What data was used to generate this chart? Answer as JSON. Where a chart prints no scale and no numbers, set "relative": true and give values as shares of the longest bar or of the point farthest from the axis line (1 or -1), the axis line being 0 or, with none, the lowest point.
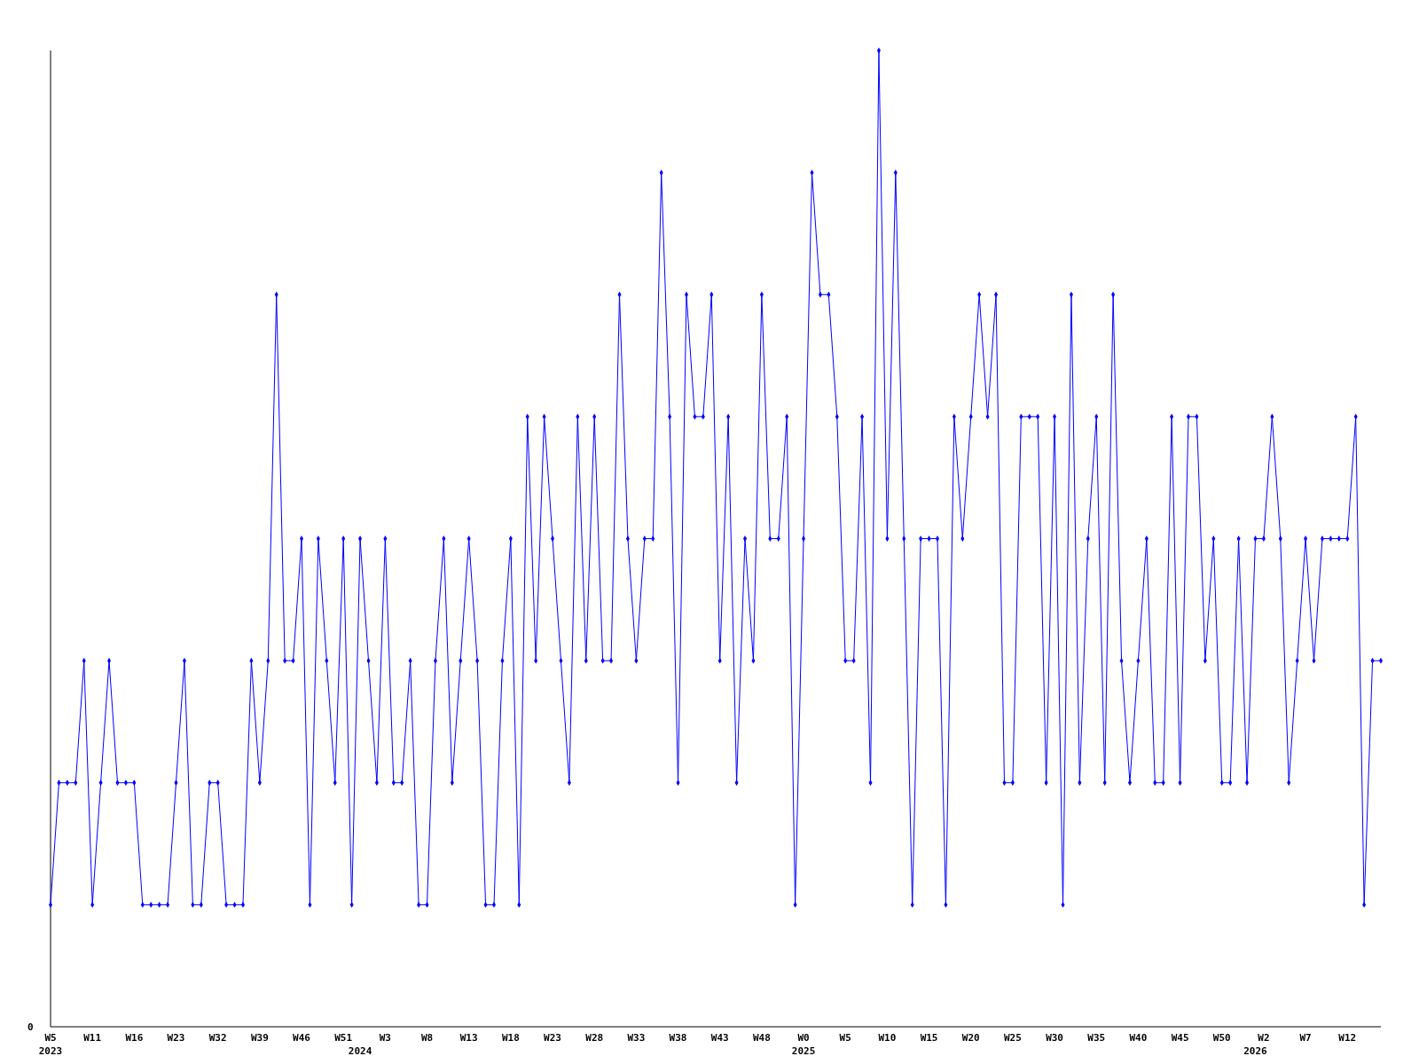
{
  "chart_data": {
    "type": "line",
    "relative": true,
    "marker": "diamond",
    "annotations": [
      "0"
    ],
    "categories": [
      "W5\n2023",
      null,
      null,
      null,
      null,
      "W11",
      null,
      null,
      null,
      null,
      "W16",
      null,
      null,
      null,
      null,
      "W23",
      null,
      null,
      null,
      null,
      "W32",
      null,
      null,
      null,
      null,
      "W39",
      null,
      null,
      null,
      null,
      "W46",
      null,
      null,
      null,
      null,
      "W51",
      null,
      "\n2024",
      null,
      null,
      "W3",
      null,
      null,
      null,
      null,
      "W8",
      null,
      null,
      null,
      null,
      "W13",
      null,
      null,
      null,
      null,
      "W18",
      null,
      null,
      null,
      null,
      "W23",
      null,
      null,
      null,
      null,
      "W28",
      null,
      null,
      null,
      null,
      "W33",
      null,
      null,
      null,
      null,
      "W38",
      null,
      null,
      null,
      null,
      "W43",
      null,
      null,
      null,
      null,
      "W48",
      null,
      null,
      null,
      null,
      "W0\n2025",
      null,
      null,
      null,
      null,
      "W5",
      null,
      null,
      null,
      null,
      "W10",
      null,
      null,
      null,
      null,
      "W15",
      null,
      null,
      null,
      null,
      "W20",
      null,
      null,
      null,
      null,
      "W25",
      null,
      null,
      null,
      null,
      "W30",
      null,
      null,
      null,
      null,
      "W35",
      null,
      null,
      null,
      null,
      "W40",
      null,
      null,
      null,
      null,
      "W45",
      null,
      null,
      null,
      null,
      "W50",
      null,
      null,
      null,
      "\n2026",
      "W2",
      null,
      null,
      null,
      null,
      "W7",
      null,
      null,
      null,
      null,
      "W12",
      null,
      null,
      null,
      null
    ],
    "series": [
      {
        "color": "#0000ff",
        "values": [
          0.125,
          0.25,
          0.25,
          0.25,
          0.375,
          0.125,
          0.25,
          0.375,
          0.25,
          0.25,
          0.25,
          0.125,
          0.125,
          0.125,
          0.125,
          0.25,
          0.375,
          0.125,
          0.125,
          0.25,
          0.25,
          0.125,
          0.125,
          0.125,
          0.375,
          0.25,
          0.375,
          0.75,
          0.375,
          0.375,
          0.5,
          0.125,
          0.5,
          0.375,
          0.25,
          0.5,
          0.125,
          0.5,
          0.375,
          0.25,
          0.5,
          0.25,
          0.25,
          0.375,
          0.125,
          0.125,
          0.375,
          0.5,
          0.25,
          0.375,
          0.5,
          0.375,
          0.125,
          0.125,
          0.375,
          0.5,
          0.125,
          0.625,
          0.375,
          0.625,
          0.5,
          0.375,
          0.25,
          0.625,
          0.375,
          0.625,
          0.375,
          0.375,
          0.75,
          0.5,
          0.375,
          0.5,
          0.5,
          0.875,
          0.625,
          0.25,
          0.75,
          0.625,
          0.625,
          0.75,
          0.375,
          0.625,
          0.25,
          0.5,
          0.375,
          0.75,
          0.5,
          0.5,
          0.625,
          0.125,
          0.5,
          0.875,
          0.75,
          0.75,
          0.625,
          0.375,
          0.375,
          0.625,
          0.25,
          1,
          0.5,
          0.875,
          0.5,
          0.125,
          0.5,
          0.5,
          0.5,
          0.125,
          0.625,
          0.5,
          0.625,
          0.75,
          0.625,
          0.75,
          0.25,
          0.25,
          0.625,
          0.625,
          0.625,
          0.25,
          0.625,
          0.125,
          0.75,
          0.25,
          0.5,
          0.625,
          0.25,
          0.75,
          0.375,
          0.25,
          0.375,
          0.5,
          0.25,
          0.25,
          0.625,
          0.25,
          0.625,
          0.625,
          0.375,
          0.5,
          0.25,
          0.25,
          0.5,
          0.25,
          0.5,
          0.5,
          0.625,
          0.5,
          0.25,
          0.375,
          0.5,
          0.375,
          0.5,
          0.5,
          0.5,
          0.5,
          0.625,
          0.125,
          0.375,
          0.375
        ]
      }
    ]
  }
}
